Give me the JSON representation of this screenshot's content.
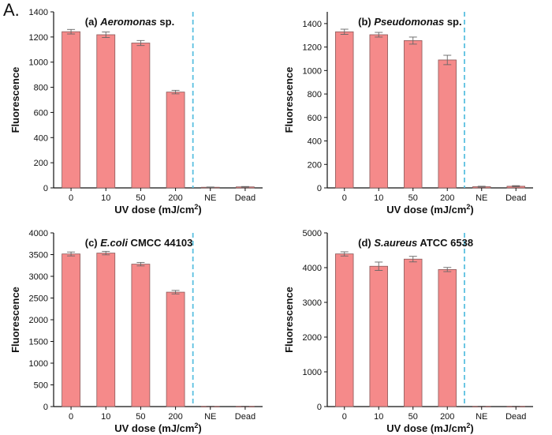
{
  "figure_label": "A.",
  "colors": {
    "bar_fill": "#f58a8a",
    "bar_stroke": "#8a5a5a",
    "divider": "#5bc0e0",
    "axis": "#111111"
  },
  "chart_data": [
    {
      "type": "bar",
      "title_prefix": "(a) ",
      "title_italic": "Aeromonas",
      "title_suffix": " sp.",
      "categories": [
        "0",
        "10",
        "50",
        "200",
        "NE",
        "Dead"
      ],
      "values": [
        1242,
        1218,
        1152,
        762,
        5,
        8
      ],
      "errors": [
        18,
        22,
        20,
        14,
        2,
        3
      ],
      "ylim": [
        0,
        1400
      ],
      "yticks": [
        0,
        200,
        400,
        600,
        800,
        1000,
        1200,
        1400
      ],
      "ylabel": "Fluorescence",
      "xlabel_main": "UV dose (mJ/cm",
      "xlabel_sup": "2",
      "xlabel_end": ")",
      "divider_after_index": 3
    },
    {
      "type": "bar",
      "title_prefix": "(b) ",
      "title_italic": "Pseudomonas",
      "title_suffix": " sp.",
      "categories": [
        "0",
        "10",
        "50",
        "200",
        "NE",
        "Dead"
      ],
      "values": [
        1330,
        1305,
        1255,
        1090,
        10,
        14
      ],
      "errors": [
        22,
        20,
        30,
        40,
        4,
        5
      ],
      "ylim": [
        0,
        1500
      ],
      "yticks": [
        0,
        200,
        400,
        600,
        800,
        1000,
        1200,
        1400
      ],
      "ylabel": "Fluorescence",
      "xlabel_main": "UV dose (mJ/cm",
      "xlabel_sup": "2",
      "xlabel_end": ")",
      "divider_after_index": 3
    },
    {
      "type": "bar",
      "title_prefix": "(c) ",
      "title_italic": "E.coli",
      "title_suffix": " CMCC 44103",
      "categories": [
        "0",
        "10",
        "50",
        "200",
        "NE",
        "Dead"
      ],
      "values": [
        3515,
        3535,
        3280,
        2635,
        6,
        6
      ],
      "errors": [
        45,
        40,
        40,
        40,
        3,
        3
      ],
      "ylim": [
        0,
        4000
      ],
      "yticks": [
        0,
        500,
        1000,
        1500,
        2000,
        2500,
        3000,
        3500,
        4000
      ],
      "ylabel": "Fluorescence",
      "xlabel_main": "UV dose (mJ/cm",
      "xlabel_sup": "2",
      "xlabel_end": ")",
      "divider_after_index": 3
    },
    {
      "type": "bar",
      "title_prefix": "(d) ",
      "title_italic": "S.aureus",
      "title_suffix": " ATCC 6538",
      "categories": [
        "0",
        "10",
        "50",
        "200",
        "NE",
        "Dead"
      ],
      "values": [
        4395,
        4040,
        4245,
        3945,
        8,
        8
      ],
      "errors": [
        60,
        120,
        80,
        60,
        4,
        4
      ],
      "ylim": [
        0,
        5000
      ],
      "yticks": [
        0,
        1000,
        2000,
        3000,
        4000,
        5000
      ],
      "ylabel": "Fluorescence",
      "xlabel_main": "UV dose (mJ/cm",
      "xlabel_sup": "2",
      "xlabel_end": ")",
      "divider_after_index": 3
    }
  ]
}
